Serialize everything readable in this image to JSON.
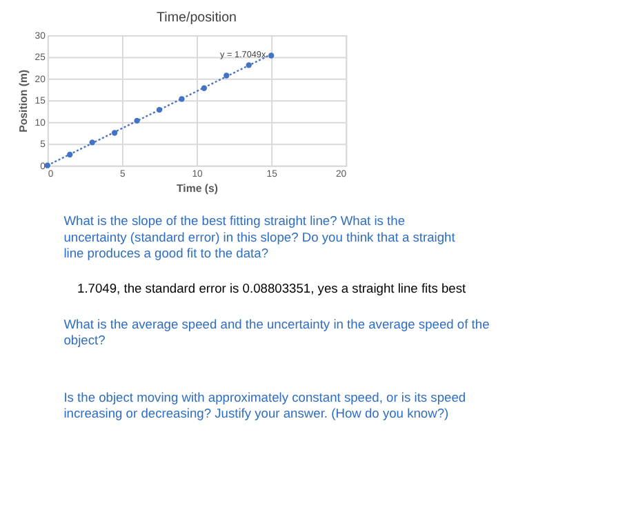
{
  "chart_data": {
    "type": "scatter",
    "title": "Time/position",
    "xlabel": "Time (s)",
    "ylabel": "Position (m)",
    "x": [
      0,
      1.5,
      3,
      4.5,
      6,
      7.5,
      9,
      10.5,
      12,
      13.5,
      15
    ],
    "series": [
      {
        "type": "scatter",
        "color": "#4472c4",
        "values": [
          0,
          2.5,
          5.3,
          7.5,
          10.3,
          12.8,
          15.3,
          17.8,
          20.7,
          23.1,
          25.3
        ]
      },
      {
        "type": "line",
        "color": "#4472c4",
        "line_style": "dotted",
        "marker": "none",
        "x": [
          0,
          15
        ],
        "values": [
          0,
          25.6
        ]
      }
    ],
    "xlim": [
      0,
      20
    ],
    "xticks": [
      0,
      5,
      10,
      15,
      20
    ],
    "ylim": [
      0,
      30
    ],
    "yticks": [
      0,
      5,
      10,
      15,
      20,
      25,
      30
    ],
    "grid": true,
    "legend": false,
    "marker": "circle",
    "annotations": [
      {
        "text": "y = 1.7049x",
        "x": 15,
        "y": 25.6
      },
      "What is the slope of the best fitting straight line?  What is the uncertainty (standard error) in this slope?  Do you think that a straight line produces a good fit to the data?",
      "1.7049, the standard error is 0.08803351, yes a straight line fits best",
      "What is the average speed and the uncertainty in the average speed of the object?",
      "Is the object moving with approximately constant speed, or is its speed increasing or decreasing?  Justify your answer.  (How do you know?)"
    ]
  }
}
